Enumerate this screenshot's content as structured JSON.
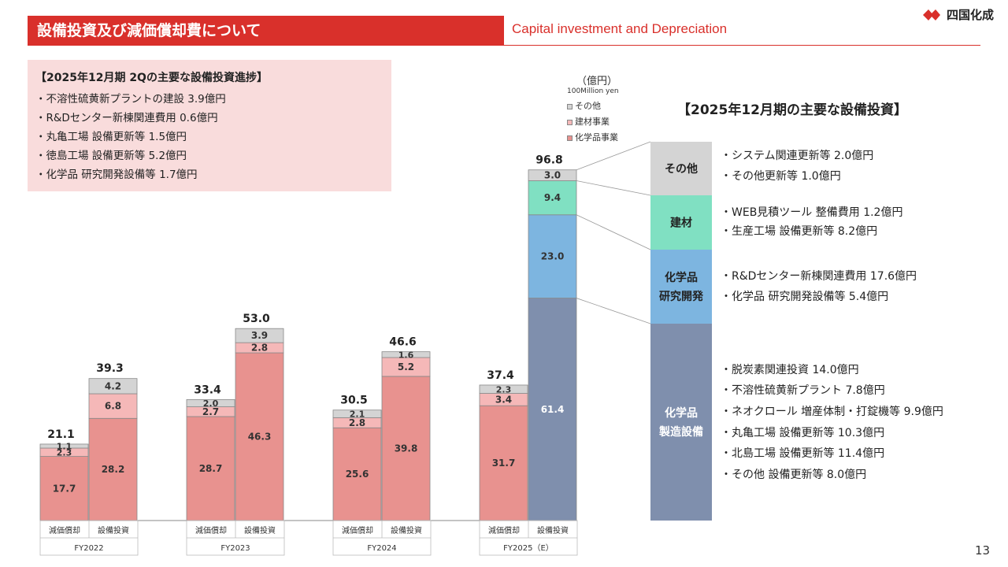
{
  "header": {
    "title_jp": "設備投資及び減価償却費について",
    "title_en": "Capital investment and Depreciation",
    "logo_text": "四国化成",
    "page_number": "13",
    "brand_color": "#d9302b"
  },
  "progress": {
    "title": "【2025年12月期 2Qの主要な設備投資進捗】",
    "items": [
      "・不溶性硫黄新プラントの建設 3.9億円",
      "・R&Dセンター新棟関連費用 0.6億円",
      "・丸亀工場 設備更新等 1.5億円",
      "・徳島工場 設備更新等 5.2億円",
      "・化学品 研究開発設備等 1.7億円"
    ]
  },
  "legend": {
    "unit_jp": "（億円）",
    "unit_en": "100Million yen",
    "items": [
      {
        "label": "その他",
        "color": "#d4d4d4"
      },
      {
        "label": "建材事業",
        "color": "#f5b8b8"
      },
      {
        "label": "化学品事業",
        "color": "#e8928f"
      }
    ]
  },
  "major": {
    "title": "【2025年12月期の主要な設備投資】",
    "blocks": [
      {
        "label": "その他",
        "color": "#d4d4d4",
        "text_color": "#222"
      },
      {
        "label": "建材",
        "color": "#80e0c2",
        "text_color": "#222"
      },
      {
        "label": "化学品\n研究開発",
        "color": "#7db5e0",
        "text_color": "#222"
      },
      {
        "label": "化学品\n製造設備",
        "color": "#7f8fad",
        "text_color": "#ffffff"
      }
    ],
    "groups": [
      [
        "・システム関連更新等 2.0億円",
        "・その他更新等 1.0億円"
      ],
      [
        "・WEB見積ツール 整備費用 1.2億円",
        "・生産工場 設備更新等 8.2億円"
      ],
      [
        "・R&Dセンター新棟関連費用 17.6億円",
        "・化学品 研究開発設備等 5.4億円"
      ],
      [
        "・脱炭素関連投資 14.0億円",
        "・不溶性硫黄新プラント 7.8億円",
        "・ネオクロール 増産体制・打錠機等 9.9億円",
        "・丸亀工場 設備更新等 10.3億円",
        "・北島工場 設備更新等 11.4億円",
        "・その他 設備更新等 8.0億円"
      ]
    ]
  },
  "chart_data": {
    "type": "bar",
    "stacked": true,
    "unit": "億円",
    "bar_labels": [
      "減価償却",
      "設備投資"
    ],
    "groups": [
      "FY2022",
      "FY2023",
      "FY2024",
      "FY2025（E）"
    ],
    "series": [
      {
        "name": "化学品事業",
        "color": "#e8928f",
        "values": [
          [
            17.7,
            28.2
          ],
          [
            28.7,
            46.3
          ],
          [
            25.6,
            39.8
          ],
          [
            31.7,
            null
          ]
        ]
      },
      {
        "name": "建材事業",
        "color": "#f5b8b8",
        "values": [
          [
            2.3,
            6.8
          ],
          [
            2.7,
            2.8
          ],
          [
            2.8,
            5.2
          ],
          [
            3.4,
            null
          ]
        ]
      },
      {
        "name": "その他",
        "color": "#d4d4d4",
        "values": [
          [
            1.1,
            4.2
          ],
          [
            2.0,
            3.9
          ],
          [
            2.1,
            1.6
          ],
          [
            2.3,
            null
          ]
        ]
      }
    ],
    "totals": [
      [
        21.1,
        39.3
      ],
      [
        33.4,
        53.0
      ],
      [
        30.5,
        46.6
      ],
      [
        37.4,
        96.8
      ]
    ],
    "fy2025_capex_breakdown": [
      {
        "name": "化学品 製造設備",
        "value": 61.4,
        "color": "#7f8fad"
      },
      {
        "name": "化学品 研究開発",
        "value": 23.0,
        "color": "#7db5e0"
      },
      {
        "name": "建材",
        "value": 9.4,
        "color": "#80e0c2"
      },
      {
        "name": "その他",
        "value": 3.0,
        "color": "#d4d4d4"
      }
    ],
    "ylim": [
      0,
      100
    ]
  }
}
